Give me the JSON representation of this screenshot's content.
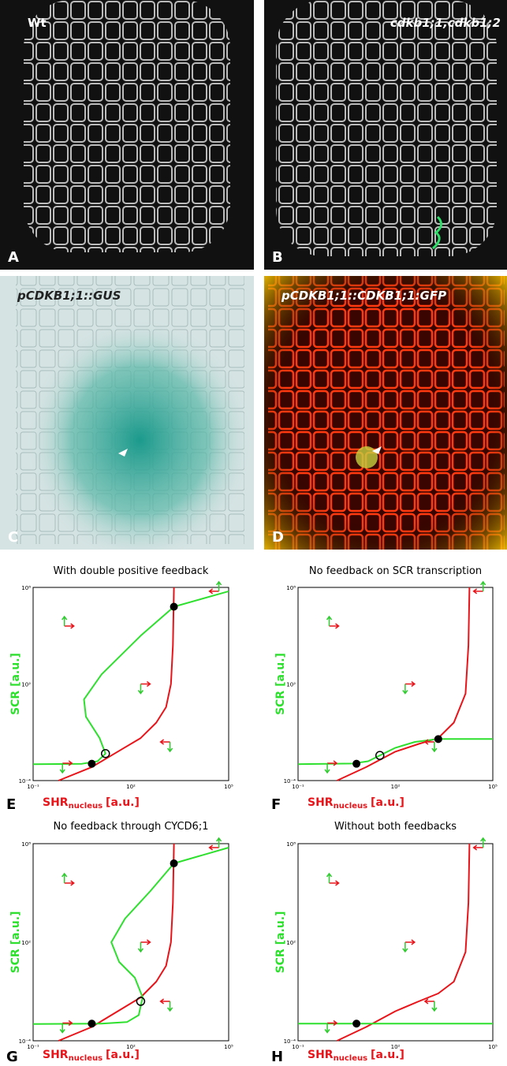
{
  "images": [
    {
      "label": "A",
      "caption": "Wt"
    },
    {
      "label": "B",
      "caption": "cdkb1;1,cdkb1;2"
    },
    {
      "label": "C",
      "caption": "pCDKB1;1::GUS"
    },
    {
      "label": "D",
      "caption": "pCDKB1;1::CDKB1;1:GFP"
    }
  ],
  "plots": [
    {
      "label": "E",
      "title": "With double positive feedback"
    },
    {
      "label": "F",
      "title": "No feedback on SCR transcription"
    },
    {
      "label": "G",
      "title": "No feedback through CYCD6;1"
    },
    {
      "label": "H",
      "title": "Without both feedbacks"
    }
  ],
  "axes": {
    "x_ticks": [
      "10⁻¹",
      "10²",
      "10⁵"
    ],
    "y_ticks": [
      "10⁻⁴",
      "10²",
      "10⁸"
    ],
    "x_label": {
      "main": "SHR",
      "sub": "nucleus",
      "unit": "[a.u.]"
    },
    "y_label": "SCR [a.u.]"
  }
}
